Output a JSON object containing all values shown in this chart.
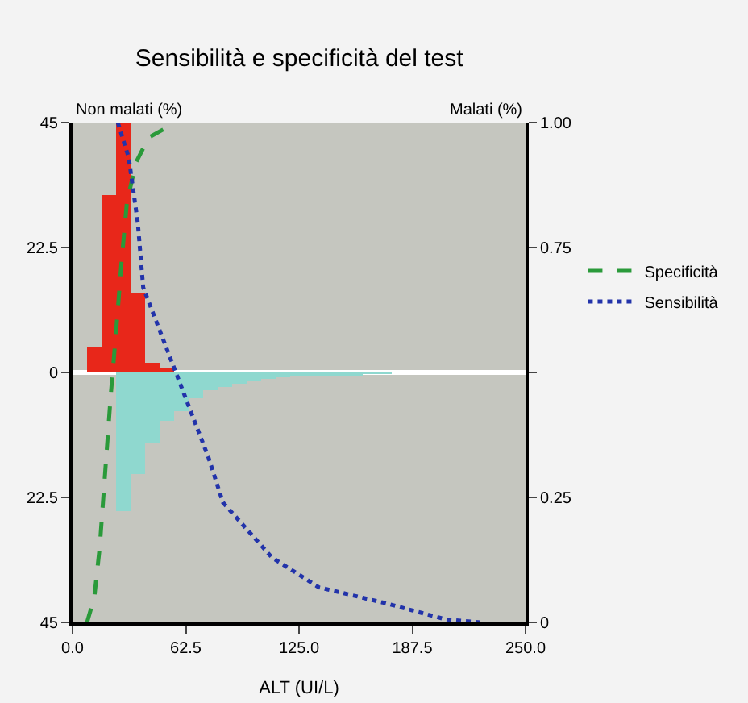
{
  "chart_data": {
    "type": "histogram",
    "title": "Sensibilità e specificità del test",
    "xlabel": "ALT (UI/L)",
    "annotations": [
      "Non malati (%)",
      "Malati (%)"
    ],
    "xlim": [
      0,
      250
    ],
    "xticks": [
      {
        "value": 0,
        "label": "0.0"
      },
      62.5,
      {
        "value": 125,
        "label": "125.0"
      },
      187.5,
      {
        "value": 250,
        "label": "250.0"
      }
    ],
    "ylim": [
      -45,
      45
    ],
    "yticks": [
      {
        "value": -45,
        "label": "45"
      },
      {
        "value": -22.5,
        "label": "22.5"
      },
      0,
      22.5,
      45
    ],
    "y2lim": [
      0,
      1
    ],
    "y2ticks": [
      {
        "value": 0,
        "label": "0"
      },
      {
        "value": 0.25,
        "label": "0.25"
      },
      {
        "value": 0.5,
        "label": null
      },
      {
        "value": 0.75,
        "label": "0.75"
      },
      {
        "value": 1,
        "label": "1.00"
      }
    ],
    "grid": false,
    "legend": "right",
    "ref_lines": [
      {
        "axis": "y",
        "value": 0,
        "color": "#ffffff"
      }
    ],
    "series": [
      {
        "color": "#e8271a",
        "bins": [
          8,
          16,
          24,
          32,
          40,
          48,
          56
        ],
        "values": [
          4.6,
          32,
          45,
          14.3,
          1.7,
          0.9
        ]
      },
      {
        "color": "#8fd8cf",
        "bins": [
          24,
          32,
          40,
          48,
          56,
          64,
          72,
          80,
          88,
          96,
          104,
          112,
          120,
          128,
          136,
          144,
          152,
          160,
          168,
          176
        ],
        "values": [
          -25,
          -18.4,
          -12.9,
          -8.8,
          -6.9,
          -4.7,
          -3.3,
          -2.5,
          -1.9,
          -1.4,
          -1.1,
          -0.8,
          -0.6,
          -0.5,
          -0.4,
          -0.3,
          -0.3,
          -0.2,
          -0.2
        ]
      },
      {
        "type": "line",
        "name": "Specificità",
        "color": "#2a9a3a",
        "line_style": "dashed",
        "axis": "y2",
        "x": [
          8,
          12,
          15,
          18,
          21,
          24,
          27,
          30,
          35,
          42,
          57
        ],
        "values": [
          0,
          0.05,
          0.15,
          0.3,
          0.45,
          0.58,
          0.72,
          0.84,
          0.92,
          0.97,
          1
        ]
      },
      {
        "type": "line",
        "name": "Sensibilità",
        "color": "#2233aa",
        "line_style": "dotted",
        "axis": "y2",
        "x": [
          25,
          31,
          36,
          39,
          57,
          75,
          83,
          110,
          136,
          171,
          206,
          225
        ],
        "values": [
          1,
          0.93,
          0.8,
          0.67,
          0.5,
          0.33,
          0.24,
          0.13,
          0.07,
          0.04,
          0.006,
          0
        ]
      }
    ]
  }
}
